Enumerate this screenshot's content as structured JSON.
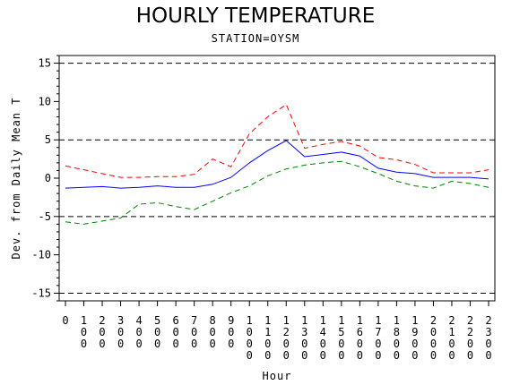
{
  "chart_data": {
    "type": "line",
    "title": "HOURLY TEMPERATURE",
    "subtitle": "STATION=OYSM",
    "xlabel": "Hour",
    "ylabel": "Dev. from Daily Mean T",
    "ylim": [
      -16,
      16
    ],
    "xlim": [
      0,
      2300
    ],
    "y_ticks": [
      -15,
      -10,
      -5,
      0,
      5,
      10,
      15
    ],
    "x": [
      0,
      100,
      200,
      300,
      400,
      500,
      600,
      700,
      800,
      900,
      1000,
      1100,
      1200,
      1300,
      1400,
      1500,
      1600,
      1700,
      1800,
      1900,
      2000,
      2100,
      2200,
      2300
    ],
    "x_tick_labels": [
      "0",
      "100",
      "200",
      "300",
      "400",
      "500",
      "600",
      "700",
      "800",
      "900",
      "1000",
      "1100",
      "1200",
      "1300",
      "1400",
      "1500",
      "1600",
      "1700",
      "1800",
      "1900",
      "2000",
      "2100",
      "2200",
      "2300"
    ],
    "reference_lines": [
      -15,
      -5,
      5,
      15
    ],
    "grid": false,
    "legend": "none",
    "series": [
      {
        "color": "#ff0000",
        "dash": "dashed",
        "values": [
          1.6,
          1.1,
          0.6,
          0.1,
          0.1,
          0.2,
          0.2,
          0.5,
          2.5,
          1.5,
          5.8,
          8.0,
          9.6,
          3.9,
          4.4,
          4.8,
          4.2,
          2.7,
          2.4,
          1.8,
          0.7,
          0.7,
          0.7,
          1.1
        ]
      },
      {
        "color": "#0000ff",
        "dash": "solid",
        "values": [
          -1.3,
          -1.2,
          -1.1,
          -1.3,
          -1.2,
          -1.0,
          -1.2,
          -1.2,
          -0.8,
          0.1,
          2.0,
          3.6,
          4.9,
          2.8,
          3.1,
          3.4,
          2.9,
          1.3,
          0.8,
          0.6,
          0.1,
          0.1,
          0.1,
          -0.1
        ]
      },
      {
        "color": "#008000",
        "dash": "dashed",
        "values": [
          -5.7,
          -6.0,
          -5.6,
          -5.2,
          -3.4,
          -3.2,
          -3.7,
          -4.1,
          -3.0,
          -1.9,
          -1.0,
          0.3,
          1.2,
          1.7,
          2.0,
          2.2,
          1.5,
          0.6,
          -0.4,
          -1.0,
          -1.3,
          -0.4,
          -0.7,
          -1.2
        ]
      }
    ]
  }
}
